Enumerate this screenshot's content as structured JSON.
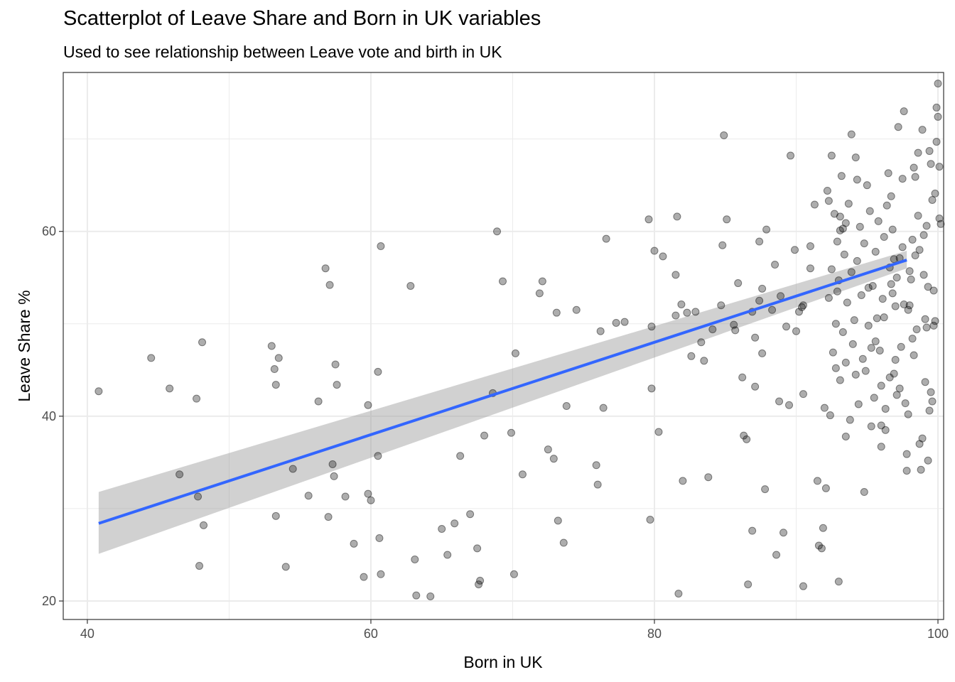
{
  "chart_data": {
    "type": "scatter",
    "title": "Scatterplot of Leave Share and Born in UK variables",
    "subtitle": "Used to see relationship between Leave vote and birth in UK",
    "xlabel": "Born in UK",
    "ylabel": "Leave Share %",
    "xlim": [
      38.3,
      100.4
    ],
    "ylim": [
      18.0,
      77.2
    ],
    "x_ticks": [
      40,
      60,
      80,
      100
    ],
    "y_ticks": [
      20,
      40,
      60
    ],
    "grid": true,
    "colors": {
      "points": "#000000",
      "fit_line": "#3366FF",
      "ribbon": "#999999",
      "grid": "#ebebeb",
      "panel_border": "#333333"
    },
    "fit": {
      "x": [
        40.8,
        97.8
      ],
      "y": [
        28.4,
        56.9
      ],
      "ci_lower": [
        25.1,
        56.0
      ],
      "ci_upper": [
        31.8,
        57.9
      ]
    },
    "points": [
      [
        40.8,
        42.7
      ],
      [
        44.5,
        46.3
      ],
      [
        45.8,
        43.0
      ],
      [
        46.5,
        33.7
      ],
      [
        47.7,
        41.9
      ],
      [
        47.8,
        31.3
      ],
      [
        47.9,
        23.8
      ],
      [
        48.1,
        48.0
      ],
      [
        48.2,
        28.2
      ],
      [
        53.0,
        47.6
      ],
      [
        53.2,
        45.1
      ],
      [
        53.3,
        43.4
      ],
      [
        53.3,
        29.2
      ],
      [
        53.5,
        46.3
      ],
      [
        54.0,
        23.7
      ],
      [
        54.5,
        34.3
      ],
      [
        55.6,
        31.4
      ],
      [
        56.3,
        41.6
      ],
      [
        56.8,
        56.0
      ],
      [
        57.0,
        29.1
      ],
      [
        57.1,
        54.2
      ],
      [
        57.3,
        34.8
      ],
      [
        57.4,
        33.5
      ],
      [
        57.5,
        45.6
      ],
      [
        57.6,
        43.4
      ],
      [
        58.2,
        31.3
      ],
      [
        58.8,
        26.2
      ],
      [
        59.5,
        22.6
      ],
      [
        59.8,
        41.2
      ],
      [
        59.8,
        31.6
      ],
      [
        60.0,
        30.9
      ],
      [
        60.5,
        44.8
      ],
      [
        60.5,
        35.7
      ],
      [
        60.6,
        26.8
      ],
      [
        60.7,
        22.9
      ],
      [
        60.7,
        58.4
      ],
      [
        62.8,
        54.1
      ],
      [
        63.1,
        24.5
      ],
      [
        63.2,
        20.6
      ],
      [
        64.2,
        20.5
      ],
      [
        65.0,
        27.8
      ],
      [
        65.4,
        25.0
      ],
      [
        65.9,
        28.4
      ],
      [
        66.3,
        35.7
      ],
      [
        67.0,
        29.4
      ],
      [
        67.5,
        25.7
      ],
      [
        67.6,
        21.8
      ],
      [
        67.7,
        22.2
      ],
      [
        68.0,
        37.9
      ],
      [
        68.6,
        42.5
      ],
      [
        68.9,
        60.0
      ],
      [
        69.3,
        54.6
      ],
      [
        69.9,
        38.2
      ],
      [
        70.1,
        22.9
      ],
      [
        70.2,
        46.8
      ],
      [
        70.7,
        33.7
      ],
      [
        71.9,
        53.3
      ],
      [
        72.1,
        54.6
      ],
      [
        72.5,
        36.4
      ],
      [
        72.9,
        35.4
      ],
      [
        73.1,
        51.2
      ],
      [
        73.2,
        28.7
      ],
      [
        73.6,
        26.3
      ],
      [
        73.8,
        41.1
      ],
      [
        74.5,
        51.5
      ],
      [
        75.9,
        34.7
      ],
      [
        76.0,
        32.6
      ],
      [
        76.2,
        49.2
      ],
      [
        76.4,
        40.9
      ],
      [
        76.6,
        59.2
      ],
      [
        77.3,
        50.1
      ],
      [
        77.9,
        50.2
      ],
      [
        79.6,
        61.3
      ],
      [
        79.7,
        28.8
      ],
      [
        79.8,
        49.7
      ],
      [
        79.8,
        43.0
      ],
      [
        80.0,
        57.9
      ],
      [
        80.3,
        38.3
      ],
      [
        80.6,
        57.3
      ],
      [
        81.5,
        55.3
      ],
      [
        81.5,
        50.9
      ],
      [
        81.6,
        61.6
      ],
      [
        81.7,
        20.8
      ],
      [
        81.9,
        52.1
      ],
      [
        82.0,
        33.0
      ],
      [
        82.3,
        51.2
      ],
      [
        82.6,
        46.5
      ],
      [
        82.9,
        51.3
      ],
      [
        83.3,
        48.0
      ],
      [
        83.5,
        46.0
      ],
      [
        83.8,
        33.4
      ],
      [
        84.1,
        49.4
      ],
      [
        84.7,
        52.0
      ],
      [
        84.8,
        58.5
      ],
      [
        84.9,
        70.4
      ],
      [
        85.1,
        61.3
      ],
      [
        85.6,
        49.9
      ],
      [
        85.7,
        49.3
      ],
      [
        85.9,
        54.4
      ],
      [
        86.2,
        44.2
      ],
      [
        86.3,
        37.9
      ],
      [
        86.5,
        37.5
      ],
      [
        86.6,
        21.8
      ],
      [
        86.9,
        27.6
      ],
      [
        86.9,
        51.3
      ],
      [
        87.1,
        43.2
      ],
      [
        87.1,
        48.5
      ],
      [
        87.4,
        52.5
      ],
      [
        87.4,
        58.9
      ],
      [
        87.6,
        53.8
      ],
      [
        87.6,
        46.8
      ],
      [
        87.8,
        32.1
      ],
      [
        87.9,
        60.2
      ],
      [
        88.3,
        51.5
      ],
      [
        88.5,
        56.4
      ],
      [
        88.6,
        25.0
      ],
      [
        88.8,
        41.6
      ],
      [
        88.9,
        53.0
      ],
      [
        89.1,
        27.4
      ],
      [
        89.3,
        49.7
      ],
      [
        89.5,
        41.2
      ],
      [
        89.6,
        68.2
      ],
      [
        89.9,
        58.0
      ],
      [
        90.0,
        49.2
      ],
      [
        90.2,
        51.3
      ],
      [
        90.4,
        51.8
      ],
      [
        90.5,
        21.6
      ],
      [
        90.5,
        52.0
      ],
      [
        90.5,
        42.4
      ],
      [
        91.0,
        58.4
      ],
      [
        91.0,
        56.0
      ],
      [
        91.3,
        62.9
      ],
      [
        91.5,
        33.0
      ],
      [
        91.6,
        26.0
      ],
      [
        91.8,
        25.7
      ],
      [
        91.9,
        27.9
      ],
      [
        92.0,
        40.9
      ],
      [
        92.1,
        32.2
      ],
      [
        92.3,
        63.3
      ],
      [
        92.5,
        68.2
      ],
      [
        93.0,
        22.1
      ],
      [
        92.8,
        45.2
      ],
      [
        92.9,
        53.5
      ],
      [
        93.1,
        60.1
      ],
      [
        93.1,
        61.6
      ],
      [
        93.3,
        60.3
      ],
      [
        93.5,
        37.8
      ],
      [
        93.5,
        60.9
      ],
      [
        93.9,
        70.5
      ],
      [
        94.2,
        44.5
      ],
      [
        94.3,
        65.6
      ],
      [
        94.8,
        31.8
      ],
      [
        95.1,
        53.9
      ],
      [
        95.3,
        47.4
      ],
      [
        95.6,
        48.1
      ],
      [
        96.0,
        39.0
      ],
      [
        96.0,
        43.3
      ],
      [
        96.2,
        50.7
      ],
      [
        96.3,
        38.5
      ],
      [
        96.6,
        44.2
      ],
      [
        96.7,
        54.3
      ],
      [
        96.8,
        60.2
      ],
      [
        96.9,
        57.0
      ],
      [
        97.0,
        46.1
      ],
      [
        97.1,
        42.3
      ],
      [
        97.3,
        57.1
      ],
      [
        97.5,
        65.7
      ],
      [
        97.6,
        52.1
      ],
      [
        97.8,
        35.9
      ],
      [
        97.9,
        40.2
      ],
      [
        98.0,
        55.7
      ],
      [
        98.2,
        48.4
      ],
      [
        98.3,
        66.9
      ],
      [
        98.4,
        57.4
      ],
      [
        98.6,
        68.5
      ],
      [
        98.7,
        37.0
      ],
      [
        98.9,
        71.0
      ],
      [
        99.0,
        59.6
      ],
      [
        99.1,
        50.5
      ],
      [
        99.2,
        60.6
      ],
      [
        99.3,
        54.0
      ],
      [
        99.4,
        40.6
      ],
      [
        99.5,
        67.3
      ],
      [
        99.6,
        41.6
      ],
      [
        99.7,
        49.8
      ],
      [
        99.8,
        50.3
      ],
      [
        99.9,
        69.7
      ],
      [
        100.0,
        76.0
      ],
      [
        100.1,
        61.4
      ],
      [
        100.2,
        60.8
      ],
      [
        100.1,
        67.0
      ],
      [
        100.0,
        72.4
      ],
      [
        99.9,
        73.4
      ],
      [
        99.8,
        64.1
      ],
      [
        99.7,
        53.6
      ],
      [
        99.6,
        63.4
      ],
      [
        99.5,
        42.6
      ],
      [
        99.4,
        68.7
      ],
      [
        99.3,
        35.2
      ],
      [
        99.2,
        49.6
      ],
      [
        99.1,
        43.7
      ],
      [
        99.0,
        55.3
      ],
      [
        98.9,
        37.6
      ],
      [
        98.8,
        34.2
      ],
      [
        98.7,
        58.0
      ],
      [
        98.6,
        61.7
      ],
      [
        98.5,
        49.4
      ],
      [
        98.4,
        65.9
      ],
      [
        98.3,
        46.6
      ],
      [
        98.2,
        59.1
      ],
      [
        98.1,
        54.8
      ],
      [
        98.0,
        52.0
      ],
      [
        97.9,
        51.5
      ],
      [
        97.8,
        34.1
      ],
      [
        97.7,
        41.4
      ],
      [
        97.6,
        73.0
      ],
      [
        97.5,
        58.3
      ],
      [
        97.4,
        47.5
      ],
      [
        97.3,
        43.0
      ],
      [
        97.2,
        71.3
      ],
      [
        97.1,
        55.0
      ],
      [
        97.0,
        51.9
      ],
      [
        96.9,
        44.6
      ],
      [
        96.8,
        53.3
      ],
      [
        96.7,
        63.8
      ],
      [
        96.6,
        56.1
      ],
      [
        96.5,
        66.3
      ],
      [
        96.4,
        62.8
      ],
      [
        96.3,
        40.8
      ],
      [
        96.2,
        59.4
      ],
      [
        96.1,
        52.7
      ],
      [
        96.0,
        36.7
      ],
      [
        95.9,
        47.1
      ],
      [
        95.8,
        61.1
      ],
      [
        95.7,
        50.6
      ],
      [
        95.6,
        57.8
      ],
      [
        95.5,
        42.0
      ],
      [
        95.4,
        54.1
      ],
      [
        95.3,
        38.9
      ],
      [
        95.2,
        62.2
      ],
      [
        95.1,
        49.8
      ],
      [
        95.0,
        65.0
      ],
      [
        94.9,
        44.9
      ],
      [
        94.8,
        58.7
      ],
      [
        94.7,
        46.2
      ],
      [
        94.6,
        53.1
      ],
      [
        94.5,
        60.5
      ],
      [
        94.4,
        41.3
      ],
      [
        94.3,
        56.8
      ],
      [
        94.2,
        68.0
      ],
      [
        94.1,
        50.4
      ],
      [
        94.0,
        47.8
      ],
      [
        93.9,
        55.6
      ],
      [
        93.8,
        39.6
      ],
      [
        93.7,
        63.0
      ],
      [
        93.6,
        52.3
      ],
      [
        93.5,
        45.8
      ],
      [
        93.4,
        57.5
      ],
      [
        93.3,
        49.1
      ],
      [
        93.2,
        66.0
      ],
      [
        93.1,
        43.9
      ],
      [
        93.0,
        54.7
      ],
      [
        92.9,
        58.9
      ],
      [
        92.8,
        50.0
      ],
      [
        92.7,
        61.9
      ],
      [
        92.6,
        46.9
      ],
      [
        92.5,
        55.9
      ],
      [
        92.4,
        40.1
      ],
      [
        92.3,
        52.8
      ],
      [
        92.2,
        64.4
      ]
    ]
  }
}
